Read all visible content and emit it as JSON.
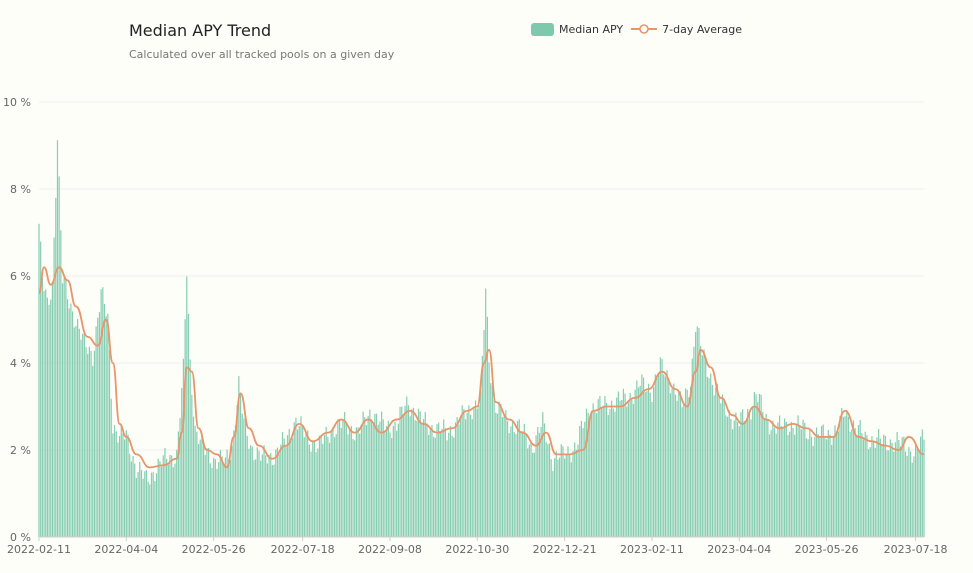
{
  "header": {
    "title": "Median APY Trend",
    "subtitle": "Calculated over all tracked pools on a given day"
  },
  "legend": {
    "bar_label": "Median APY",
    "line_label": "7-day Average"
  },
  "colors": {
    "bar": "#86cdb2",
    "line": "#e8956a",
    "grid": "#eeeeea",
    "background": "#fefef9"
  },
  "chart_data": {
    "type": "bar",
    "title": "Median APY Trend",
    "subtitle": "Calculated over all tracked pools on a given day",
    "x_start": "2022-02-11",
    "x_end": "2023-07-23",
    "x_tick_labels": [
      "2022-02-11",
      "2022-04-04",
      "2022-05-26",
      "2022-07-18",
      "2022-09-08",
      "2022-10-30",
      "2022-12-21",
      "2023-02-11",
      "2023-04-04",
      "2023-05-26",
      "2023-07-18"
    ],
    "ylim": [
      0,
      10
    ],
    "y_tick_values": [
      0,
      2,
      4,
      6,
      8,
      10
    ],
    "y_tick_labels": [
      "0 %",
      "2 %",
      "4 %",
      "6 %",
      "8 %",
      "10 %"
    ],
    "grid": true,
    "legend_position": "top-right",
    "series": [
      {
        "name": "Median APY",
        "type": "bar",
        "keypoints": [
          [
            "2022-02-11",
            7.2
          ],
          [
            "2022-02-13",
            5.9
          ],
          [
            "2022-02-16",
            5.3
          ],
          [
            "2022-02-19",
            5.8
          ],
          [
            "2022-02-22",
            9.2
          ],
          [
            "2022-02-25",
            5.9
          ],
          [
            "2022-03-01",
            5.4
          ],
          [
            "2022-03-05",
            5.0
          ],
          [
            "2022-03-10",
            4.4
          ],
          [
            "2022-03-15",
            4.2
          ],
          [
            "2022-03-20",
            5.6
          ],
          [
            "2022-03-24",
            5.0
          ],
          [
            "2022-03-27",
            2.6
          ],
          [
            "2022-03-31",
            2.3
          ],
          [
            "2022-04-04",
            2.3
          ],
          [
            "2022-04-10",
            1.6
          ],
          [
            "2022-04-16",
            1.3
          ],
          [
            "2022-04-22",
            1.6
          ],
          [
            "2022-04-28",
            1.8
          ],
          [
            "2022-05-04",
            1.9
          ],
          [
            "2022-05-08",
            3.8
          ],
          [
            "2022-05-10",
            6.1
          ],
          [
            "2022-05-12",
            4.0
          ],
          [
            "2022-05-15",
            2.5
          ],
          [
            "2022-05-20",
            2.0
          ],
          [
            "2022-05-26",
            1.8
          ],
          [
            "2022-06-02",
            1.7
          ],
          [
            "2022-06-06",
            2.1
          ],
          [
            "2022-06-10",
            3.5
          ],
          [
            "2022-06-13",
            2.6
          ],
          [
            "2022-06-17",
            2.1
          ],
          [
            "2022-06-24",
            1.8
          ],
          [
            "2022-07-01",
            1.9
          ],
          [
            "2022-07-08",
            2.2
          ],
          [
            "2022-07-14",
            2.7
          ],
          [
            "2022-07-20",
            2.3
          ],
          [
            "2022-07-28",
            2.1
          ],
          [
            "2022-08-05",
            2.5
          ],
          [
            "2022-08-12",
            2.6
          ],
          [
            "2022-08-20",
            2.4
          ],
          [
            "2022-08-28",
            2.9
          ],
          [
            "2022-09-05",
            2.5
          ],
          [
            "2022-09-12",
            2.6
          ],
          [
            "2022-09-19",
            3.1
          ],
          [
            "2022-09-26",
            2.7
          ],
          [
            "2022-10-04",
            2.5
          ],
          [
            "2022-10-12",
            2.4
          ],
          [
            "2022-10-20",
            2.7
          ],
          [
            "2022-10-27",
            3.0
          ],
          [
            "2022-11-01",
            3.1
          ],
          [
            "2022-11-04",
            5.7
          ],
          [
            "2022-11-06",
            4.1
          ],
          [
            "2022-11-10",
            3.0
          ],
          [
            "2022-11-16",
            2.7
          ],
          [
            "2022-11-24",
            2.5
          ],
          [
            "2022-12-02",
            2.1
          ],
          [
            "2022-12-08",
            2.6
          ],
          [
            "2022-12-14",
            1.8
          ],
          [
            "2022-12-21",
            1.9
          ],
          [
            "2022-12-28",
            2.1
          ],
          [
            "2023-01-05",
            3.0
          ],
          [
            "2023-01-12",
            3.0
          ],
          [
            "2023-01-20",
            3.1
          ],
          [
            "2023-01-28",
            3.2
          ],
          [
            "2023-02-04",
            3.5
          ],
          [
            "2023-02-11",
            3.4
          ],
          [
            "2023-02-16",
            3.9
          ],
          [
            "2023-02-22",
            3.6
          ],
          [
            "2023-03-01",
            3.0
          ],
          [
            "2023-03-06",
            3.6
          ],
          [
            "2023-03-09",
            4.9
          ],
          [
            "2023-03-13",
            4.2
          ],
          [
            "2023-03-18",
            3.7
          ],
          [
            "2023-03-24",
            3.1
          ],
          [
            "2023-03-30",
            2.8
          ],
          [
            "2023-04-04",
            2.6
          ],
          [
            "2023-04-10",
            2.9
          ],
          [
            "2023-04-14",
            3.3
          ],
          [
            "2023-04-20",
            2.7
          ],
          [
            "2023-04-27",
            2.5
          ],
          [
            "2023-05-04",
            2.6
          ],
          [
            "2023-05-12",
            2.5
          ],
          [
            "2023-05-20",
            2.3
          ],
          [
            "2023-05-26",
            2.4
          ],
          [
            "2023-06-01",
            2.4
          ],
          [
            "2023-06-06",
            2.9
          ],
          [
            "2023-06-12",
            2.5
          ],
          [
            "2023-06-18",
            2.3
          ],
          [
            "2023-06-26",
            2.2
          ],
          [
            "2023-07-04",
            2.2
          ],
          [
            "2023-07-12",
            2.1
          ],
          [
            "2023-07-18",
            1.9
          ],
          [
            "2023-07-23",
            2.3
          ]
        ]
      },
      {
        "name": "7-day Average",
        "type": "line",
        "keypoints": [
          [
            "2022-02-11",
            5.6
          ],
          [
            "2022-02-14",
            6.2
          ],
          [
            "2022-02-18",
            5.8
          ],
          [
            "2022-02-23",
            6.2
          ],
          [
            "2022-02-28",
            5.9
          ],
          [
            "2022-03-05",
            5.3
          ],
          [
            "2022-03-12",
            4.6
          ],
          [
            "2022-03-18",
            4.4
          ],
          [
            "2022-03-23",
            5.0
          ],
          [
            "2022-03-27",
            4.0
          ],
          [
            "2022-03-31",
            2.6
          ],
          [
            "2022-04-04",
            2.3
          ],
          [
            "2022-04-10",
            1.9
          ],
          [
            "2022-04-18",
            1.6
          ],
          [
            "2022-04-26",
            1.65
          ],
          [
            "2022-05-04",
            1.8
          ],
          [
            "2022-05-07",
            2.4
          ],
          [
            "2022-05-10",
            3.9
          ],
          [
            "2022-05-13",
            3.8
          ],
          [
            "2022-05-17",
            2.5
          ],
          [
            "2022-05-22",
            2.0
          ],
          [
            "2022-05-28",
            1.9
          ],
          [
            "2022-06-03",
            1.6
          ],
          [
            "2022-06-07",
            2.3
          ],
          [
            "2022-06-11",
            3.3
          ],
          [
            "2022-06-16",
            2.5
          ],
          [
            "2022-06-22",
            2.1
          ],
          [
            "2022-06-30",
            1.8
          ],
          [
            "2022-07-08",
            2.1
          ],
          [
            "2022-07-16",
            2.6
          ],
          [
            "2022-07-24",
            2.2
          ],
          [
            "2022-08-02",
            2.4
          ],
          [
            "2022-08-10",
            2.7
          ],
          [
            "2022-08-18",
            2.4
          ],
          [
            "2022-08-26",
            2.7
          ],
          [
            "2022-09-03",
            2.4
          ],
          [
            "2022-09-12",
            2.7
          ],
          [
            "2022-09-20",
            2.9
          ],
          [
            "2022-09-28",
            2.6
          ],
          [
            "2022-10-06",
            2.4
          ],
          [
            "2022-10-15",
            2.5
          ],
          [
            "2022-10-24",
            2.9
          ],
          [
            "2022-10-30",
            3.0
          ],
          [
            "2022-11-03",
            4.0
          ],
          [
            "2022-11-06",
            4.3
          ],
          [
            "2022-11-10",
            3.1
          ],
          [
            "2022-11-18",
            2.7
          ],
          [
            "2022-11-26",
            2.4
          ],
          [
            "2022-12-04",
            2.1
          ],
          [
            "2022-12-10",
            2.4
          ],
          [
            "2022-12-16",
            1.9
          ],
          [
            "2022-12-24",
            1.9
          ],
          [
            "2023-01-01",
            2.0
          ],
          [
            "2023-01-07",
            2.9
          ],
          [
            "2023-01-15",
            3.0
          ],
          [
            "2023-01-23",
            3.0
          ],
          [
            "2023-02-01",
            3.2
          ],
          [
            "2023-02-09",
            3.4
          ],
          [
            "2023-02-17",
            3.8
          ],
          [
            "2023-02-25",
            3.4
          ],
          [
            "2023-03-04",
            3.0
          ],
          [
            "2023-03-09",
            3.8
          ],
          [
            "2023-03-12",
            4.3
          ],
          [
            "2023-03-18",
            3.9
          ],
          [
            "2023-03-24",
            3.2
          ],
          [
            "2023-03-31",
            2.8
          ],
          [
            "2023-04-06",
            2.6
          ],
          [
            "2023-04-13",
            3.0
          ],
          [
            "2023-04-20",
            2.7
          ],
          [
            "2023-04-28",
            2.5
          ],
          [
            "2023-05-06",
            2.6
          ],
          [
            "2023-05-14",
            2.5
          ],
          [
            "2023-05-22",
            2.3
          ],
          [
            "2023-05-30",
            2.3
          ],
          [
            "2023-06-06",
            2.9
          ],
          [
            "2023-06-14",
            2.3
          ],
          [
            "2023-06-22",
            2.2
          ],
          [
            "2023-06-30",
            2.1
          ],
          [
            "2023-07-08",
            2.0
          ],
          [
            "2023-07-14",
            2.3
          ],
          [
            "2023-07-23",
            1.9
          ]
        ]
      }
    ]
  }
}
